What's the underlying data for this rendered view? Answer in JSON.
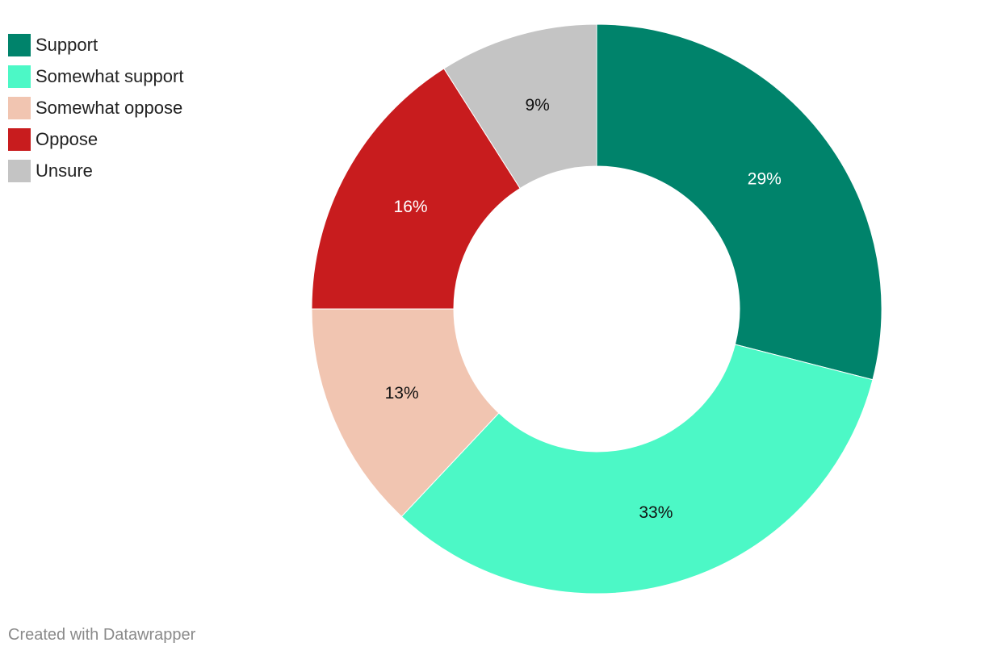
{
  "chart_data": {
    "type": "pie",
    "donut": true,
    "slices": [
      {
        "label": "Support",
        "value": 29,
        "value_label": "29%",
        "color": "#00836b",
        "label_color": "#ffffff"
      },
      {
        "label": "Somewhat support",
        "value": 33,
        "value_label": "33%",
        "color": "#4cf8c6",
        "label_color": "#111111"
      },
      {
        "label": "Somewhat oppose",
        "value": 13,
        "value_label": "13%",
        "color": "#f1c5b1",
        "label_color": "#111111"
      },
      {
        "label": "Oppose",
        "value": 16,
        "value_label": "16%",
        "color": "#c81c1e",
        "label_color": "#ffffff"
      },
      {
        "label": "Unsure",
        "value": 9,
        "value_label": "9%",
        "color": "#c4c4c4",
        "label_color": "#111111"
      }
    ],
    "legend_position": "top-left"
  },
  "footer": {
    "credit": "Created with Datawrapper"
  }
}
